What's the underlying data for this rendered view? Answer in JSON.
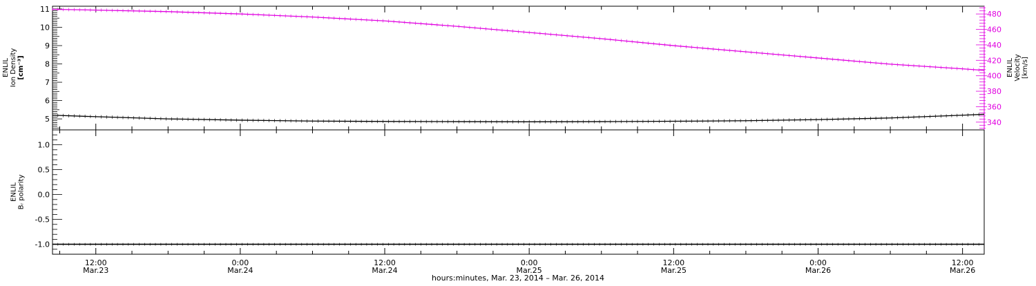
{
  "chart_data": [
    {
      "type": "line",
      "panel": "top",
      "x_unit": "hours since 2014-03-23 00:00",
      "xlim": [
        8.4,
        85.8
      ],
      "ylabel_lines": [
        "ENLIL",
        "Ion Density",
        "[cm⁻³]"
      ],
      "ylim": [
        4.4,
        11.15
      ],
      "yticks": [
        5,
        6,
        7,
        8,
        9,
        10,
        11
      ],
      "y2label_lines": [
        "ENLIL",
        "Velocity",
        "[km/s]"
      ],
      "y2lim": [
        330,
        490
      ],
      "y2ticks": [
        340,
        360,
        380,
        400,
        420,
        440,
        460,
        480
      ],
      "series": [
        {
          "name": "Ion Density",
          "axis": "left",
          "color": "#000000",
          "x": [
            8.4,
            12,
            18,
            24,
            30,
            36,
            42,
            48,
            54,
            60,
            66,
            72,
            78,
            84,
            85.8
          ],
          "y": [
            5.2,
            5.12,
            5.0,
            4.93,
            4.88,
            4.86,
            4.85,
            4.84,
            4.85,
            4.87,
            4.9,
            4.96,
            5.05,
            5.2,
            5.25
          ]
        },
        {
          "name": "Velocity",
          "axis": "right",
          "color": "#e000e0",
          "x": [
            8.4,
            12,
            18,
            24,
            30,
            36,
            42,
            48,
            54,
            60,
            66,
            72,
            78,
            84,
            85.8
          ],
          "y": [
            486,
            485,
            483,
            480,
            476,
            471,
            464,
            456,
            448,
            439,
            431,
            423,
            415,
            409,
            407
          ]
        }
      ]
    },
    {
      "type": "line",
      "panel": "bottom",
      "ylabel_lines": [
        "ENLIL",
        "Bᵣ polarity"
      ],
      "ylim": [
        -1.2,
        1.3
      ],
      "ytick_values": [
        -1.0,
        -0.5,
        0.0,
        0.5,
        1.0
      ],
      "ytick_labels": [
        "-1.0",
        "-0.5",
        "0.0",
        "0.5",
        "1.0"
      ],
      "series": [
        {
          "name": "Br polarity",
          "color": "#000000",
          "x": [
            8.4,
            85.8
          ],
          "y": [
            -1.0,
            -1.0
          ]
        }
      ]
    }
  ],
  "x_axis": {
    "tick_hours": [
      12,
      24,
      36,
      48,
      60,
      72,
      84
    ],
    "tick_labels": [
      [
        "12:00",
        "Mar.23"
      ],
      [
        "0:00",
        "Mar.24"
      ],
      [
        "12:00",
        "Mar.24"
      ],
      [
        "0:00",
        "Mar.25"
      ],
      [
        "12:00",
        "Mar.25"
      ],
      [
        "0:00",
        "Mar.26"
      ],
      [
        "12:00",
        "Mar.26"
      ]
    ],
    "title": "hours:minutes, Mar. 23, 2014 – Mar. 26, 2014"
  }
}
